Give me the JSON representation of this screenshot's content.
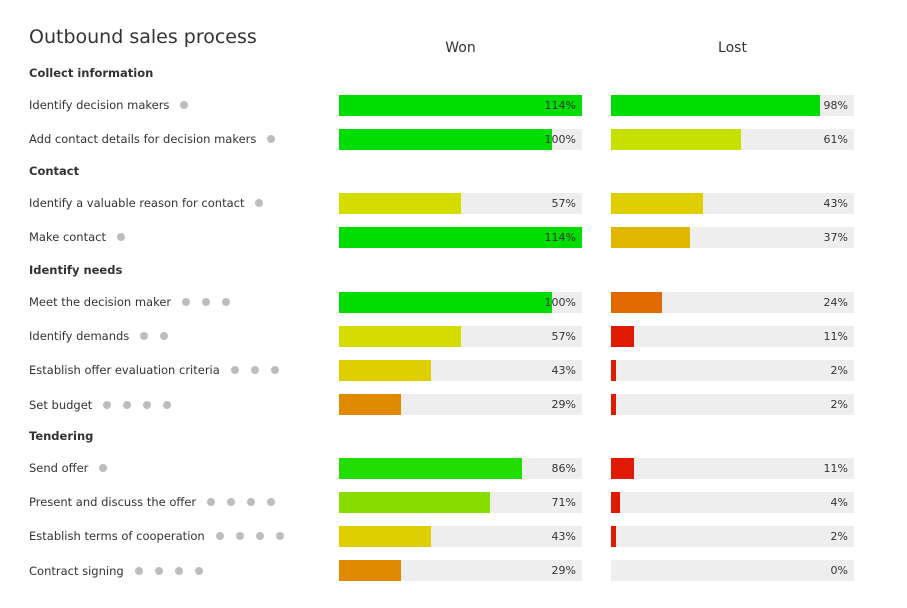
{
  "title": "Outbound sales process",
  "columns": {
    "won": "Won",
    "lost": "Lost"
  },
  "chart_data": {
    "type": "bar",
    "orientation": "horizontal",
    "value_unit": "%",
    "colors": {
      "track": "#eeeeee",
      "dot": "#bdbdbd"
    },
    "sections": [
      {
        "name": "Collect information",
        "rows": [
          {
            "label": "Identify decision makers",
            "dots": 1,
            "won": 114,
            "lost": 98,
            "won_color": "#00dd00",
            "lost_color": "#00dd00"
          },
          {
            "label": "Add contact details for decision makers",
            "dots": 1,
            "won": 100,
            "lost": 61,
            "won_color": "#00dd00",
            "lost_color": "#c6e000"
          }
        ]
      },
      {
        "name": "Contact",
        "rows": [
          {
            "label": "Identify a valuable reason for contact",
            "dots": 1,
            "won": 57,
            "lost": 43,
            "won_color": "#d4dc00",
            "lost_color": "#e0cf00"
          },
          {
            "label": "Make contact",
            "dots": 1,
            "won": 114,
            "lost": 37,
            "won_color": "#00dd00",
            "lost_color": "#e0b800"
          }
        ]
      },
      {
        "name": "Identify needs",
        "rows": [
          {
            "label": "Meet the decision maker",
            "dots": 3,
            "won": 100,
            "lost": 24,
            "won_color": "#00dd00",
            "lost_color": "#e06a00"
          },
          {
            "label": "Identify demands",
            "dots": 2,
            "won": 57,
            "lost": 11,
            "won_color": "#d4dc00",
            "lost_color": "#e01a00"
          },
          {
            "label": "Establish offer evaluation criteria",
            "dots": 3,
            "won": 43,
            "lost": 2,
            "won_color": "#e0cf00",
            "lost_color": "#e01a00"
          },
          {
            "label": "Set budget",
            "dots": 4,
            "won": 29,
            "lost": 2,
            "won_color": "#e08a00",
            "lost_color": "#e01a00"
          }
        ]
      },
      {
        "name": "Tendering",
        "rows": [
          {
            "label": "Send offer",
            "dots": 1,
            "won": 86,
            "lost": 11,
            "won_color": "#22dd00",
            "lost_color": "#e01a00"
          },
          {
            "label": "Present and discuss the offer",
            "dots": 4,
            "won": 71,
            "lost": 4,
            "won_color": "#88dd00",
            "lost_color": "#e01a00"
          },
          {
            "label": "Establish terms of cooperation",
            "dots": 4,
            "won": 43,
            "lost": 2,
            "won_color": "#e0cf00",
            "lost_color": "#e01a00"
          },
          {
            "label": "Contract signing",
            "dots": 4,
            "won": 29,
            "lost": 0,
            "won_color": "#e08a00",
            "lost_color": "#e01a00"
          }
        ]
      }
    ]
  }
}
